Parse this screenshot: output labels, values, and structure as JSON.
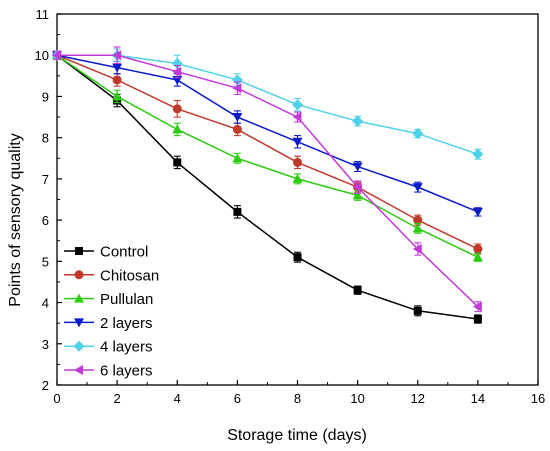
{
  "chart_data": {
    "type": "line",
    "title": "",
    "xlabel": "Storage time (days)",
    "ylabel": "Points of sensory quality",
    "xlim": [
      0,
      16
    ],
    "ylim": [
      2,
      11
    ],
    "x_ticks": [
      0,
      2,
      4,
      6,
      8,
      10,
      12,
      14,
      16
    ],
    "y_ticks": [
      2,
      3,
      4,
      5,
      6,
      7,
      8,
      9,
      10,
      11
    ],
    "grid": false,
    "legend_position": "bottom-left",
    "x": [
      0,
      2,
      4,
      6,
      8,
      10,
      12,
      14
    ],
    "series": [
      {
        "name": "Control",
        "marker": "square",
        "color": "#000000",
        "values": [
          10.0,
          8.9,
          7.4,
          6.2,
          5.1,
          4.3,
          3.8,
          3.6
        ],
        "errors": [
          0.1,
          0.15,
          0.15,
          0.15,
          0.12,
          0.1,
          0.12,
          0.1
        ]
      },
      {
        "name": "Chitosan",
        "marker": "circle",
        "color": "#c0392b",
        "values": [
          10.0,
          9.4,
          8.7,
          8.2,
          7.4,
          6.8,
          6.0,
          5.3
        ],
        "errors": [
          0.1,
          0.15,
          0.2,
          0.15,
          0.15,
          0.12,
          0.12,
          0.12
        ]
      },
      {
        "name": "Pullulan",
        "marker": "triangle-up",
        "color": "#2ecc11",
        "values": [
          10.0,
          9.0,
          8.2,
          7.5,
          7.0,
          6.6,
          5.8,
          5.1
        ],
        "errors": [
          0.1,
          0.15,
          0.15,
          0.12,
          0.12,
          0.12,
          0.12,
          0.1
        ]
      },
      {
        "name": "2 layers",
        "marker": "triangle-down",
        "color": "#0a1bcc",
        "values": [
          10.0,
          9.7,
          9.4,
          8.5,
          7.9,
          7.3,
          6.8,
          6.2
        ],
        "errors": [
          0.1,
          0.15,
          0.15,
          0.15,
          0.15,
          0.12,
          0.12,
          0.1
        ]
      },
      {
        "name": "4 layers",
        "marker": "diamond",
        "color": "#4fd2e8",
        "values": [
          10.0,
          10.0,
          9.8,
          9.4,
          8.8,
          8.4,
          8.1,
          7.6
        ],
        "errors": [
          0.1,
          0.15,
          0.2,
          0.15,
          0.15,
          0.12,
          0.1,
          0.12
        ]
      },
      {
        "name": "6 layers",
        "marker": "triangle-left",
        "color": "#c23ad8",
        "values": [
          10.0,
          10.0,
          9.6,
          9.2,
          8.5,
          6.8,
          5.3,
          3.9
        ],
        "errors": [
          0.1,
          0.2,
          0.15,
          0.15,
          0.12,
          0.15,
          0.15,
          0.12
        ]
      }
    ]
  }
}
